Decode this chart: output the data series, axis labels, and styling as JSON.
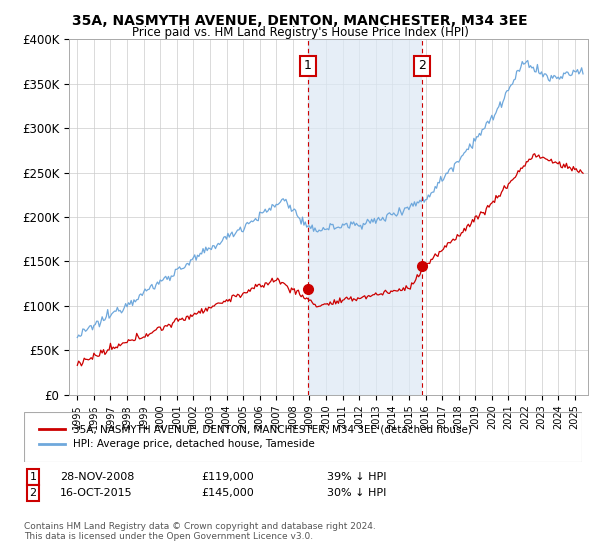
{
  "title": "35A, NASMYTH AVENUE, DENTON, MANCHESTER, M34 3EE",
  "subtitle": "Price paid vs. HM Land Registry's House Price Index (HPI)",
  "ylim": [
    0,
    400000
  ],
  "yticks": [
    0,
    50000,
    100000,
    150000,
    200000,
    250000,
    300000,
    350000,
    400000
  ],
  "ytick_labels": [
    "£0",
    "£50K",
    "£100K",
    "£150K",
    "£200K",
    "£250K",
    "£300K",
    "£350K",
    "£400K"
  ],
  "xlim_start": 1994.5,
  "xlim_end": 2025.8,
  "hpi_color": "#6fa8dc",
  "price_color": "#cc0000",
  "marker_color": "#cc0000",
  "vline_color": "#cc0000",
  "shade_color": "#dce8f5",
  "point1_x": 2008.91,
  "point1_y": 119000,
  "point2_x": 2015.79,
  "point2_y": 145000,
  "legend_label_price": "35A, NASMYTH AVENUE, DENTON, MANCHESTER, M34 3EE (detached house)",
  "legend_label_hpi": "HPI: Average price, detached house, Tameside",
  "annotation1_label": "1",
  "annotation2_label": "2",
  "footer": "Contains HM Land Registry data © Crown copyright and database right 2024.\nThis data is licensed under the Open Government Licence v3.0.",
  "background_color": "#ffffff",
  "grid_color": "#cccccc"
}
